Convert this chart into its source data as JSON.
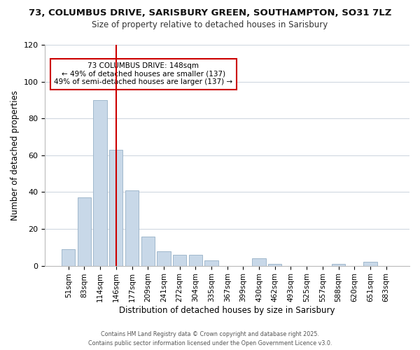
{
  "title_line1": "73, COLUMBUS DRIVE, SARISBURY GREEN, SOUTHAMPTON, SO31 7LZ",
  "title_line2": "Size of property relative to detached houses in Sarisbury",
  "bar_labels": [
    "51sqm",
    "83sqm",
    "114sqm",
    "146sqm",
    "177sqm",
    "209sqm",
    "241sqm",
    "272sqm",
    "304sqm",
    "335sqm",
    "367sqm",
    "399sqm",
    "430sqm",
    "462sqm",
    "493sqm",
    "525sqm",
    "557sqm",
    "588sqm",
    "620sqm",
    "651sqm",
    "683sqm"
  ],
  "bar_values": [
    9,
    37,
    90,
    63,
    41,
    16,
    8,
    6,
    6,
    3,
    0,
    0,
    4,
    1,
    0,
    0,
    0,
    1,
    0,
    2,
    0
  ],
  "bar_color": "#c8d8e8",
  "bar_edge_color": "#a0b8cc",
  "vline_index": 3,
  "vline_color": "#cc0000",
  "xlabel": "Distribution of detached houses by size in Sarisbury",
  "ylabel": "Number of detached properties",
  "ylim": [
    0,
    120
  ],
  "yticks": [
    0,
    20,
    40,
    60,
    80,
    100,
    120
  ],
  "annotation_title": "73 COLUMBUS DRIVE: 148sqm",
  "annotation_line1": "← 49% of detached houses are smaller (137)",
  "annotation_line2": "49% of semi-detached houses are larger (137) →",
  "annotation_box_color": "#ffffff",
  "annotation_box_edge": "#cc0000",
  "footer_line1": "Contains HM Land Registry data © Crown copyright and database right 2025.",
  "footer_line2": "Contains public sector information licensed under the Open Government Licence v3.0.",
  "background_color": "#ffffff",
  "grid_color": "#d0d8e0"
}
